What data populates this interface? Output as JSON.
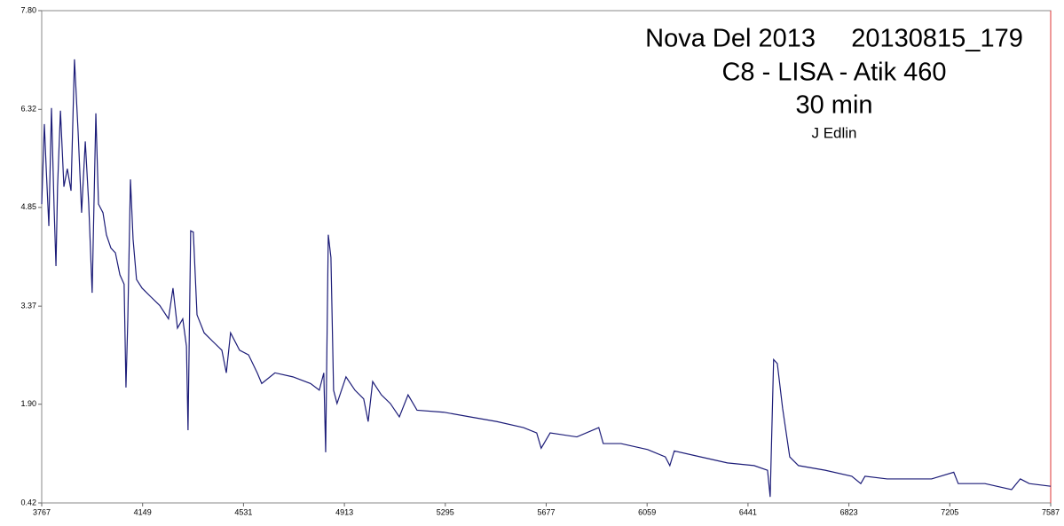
{
  "chart_data": {
    "type": "line",
    "title": "Nova Del 2013     20130815_179",
    "subtitle": "C8 - LISA - Atik 460",
    "annotations": [
      "30 min",
      "J Edlin"
    ],
    "color": "#1c1c78",
    "xlim": [
      3767,
      7587
    ],
    "xticks": [
      3767,
      4149,
      4531,
      4913,
      5295,
      5677,
      6059,
      6441,
      6823,
      7205,
      7587
    ],
    "ylim": [
      0.42,
      7.8
    ],
    "yticks": [
      0.42,
      {
        "value": 1.9,
        "label": "1.90"
      },
      3.37,
      4.85,
      6.32,
      {
        "value": 7.8,
        "label": "7.80"
      }
    ],
    "x": [
      3767,
      3777,
      3784,
      3794,
      3804,
      3814,
      3821,
      3827,
      3838,
      3851,
      3864,
      3878,
      3891,
      3905,
      3918,
      3932,
      3945,
      3958,
      3972,
      3982,
      3999,
      4012,
      4029,
      4046,
      4063,
      4079,
      4086,
      4093,
      4103,
      4113,
      4126,
      4147,
      4180,
      4214,
      4247,
      4264,
      4281,
      4301,
      4315,
      4321,
      4331,
      4341,
      4355,
      4382,
      4415,
      4449,
      4466,
      4482,
      4516,
      4550,
      4583,
      4600,
      4650,
      4718,
      4785,
      4818,
      4835,
      4842,
      4852,
      4862,
      4872,
      4885,
      4919,
      4953,
      4986,
      5003,
      5020,
      5053,
      5087,
      5121,
      5154,
      5188,
      5289,
      5389,
      5490,
      5591,
      5641,
      5658,
      5692,
      5793,
      5876,
      5893,
      5960,
      6061,
      6128,
      6145,
      6162,
      6262,
      6363,
      6464,
      6515,
      6525,
      6538,
      6552,
      6572,
      6599,
      6632,
      6733,
      6834,
      6868,
      6884,
      6968,
      7136,
      7220,
      7237,
      7338,
      7439,
      7472,
      7506,
      7587
    ],
    "values": [
      4.9,
      6.1,
      5.44,
      4.57,
      6.34,
      4.83,
      3.97,
      5.16,
      6.3,
      5.16,
      5.43,
      5.1,
      7.07,
      5.97,
      4.77,
      5.84,
      4.9,
      3.57,
      6.26,
      4.9,
      4.77,
      4.44,
      4.24,
      4.17,
      3.84,
      3.7,
      2.15,
      3.18,
      5.27,
      4.37,
      3.77,
      3.64,
      3.51,
      3.38,
      3.18,
      3.64,
      3.04,
      3.18,
      2.77,
      1.51,
      4.5,
      4.48,
      3.24,
      2.97,
      2.84,
      2.71,
      2.37,
      2.97,
      2.71,
      2.64,
      2.37,
      2.21,
      2.37,
      2.31,
      2.21,
      2.11,
      2.37,
      1.18,
      4.44,
      4.1,
      2.11,
      1.91,
      2.31,
      2.11,
      1.98,
      1.64,
      2.24,
      2.04,
      1.91,
      1.71,
      2.04,
      1.81,
      1.78,
      1.71,
      1.64,
      1.55,
      1.47,
      1.24,
      1.47,
      1.41,
      1.55,
      1.31,
      1.31,
      1.22,
      1.11,
      0.98,
      1.2,
      1.11,
      1.02,
      0.98,
      0.91,
      0.51,
      2.57,
      2.51,
      1.84,
      1.11,
      0.98,
      0.91,
      0.82,
      0.71,
      0.82,
      0.78,
      0.78,
      0.88,
      0.71,
      0.71,
      0.62,
      0.78,
      0.71,
      0.67
    ]
  }
}
